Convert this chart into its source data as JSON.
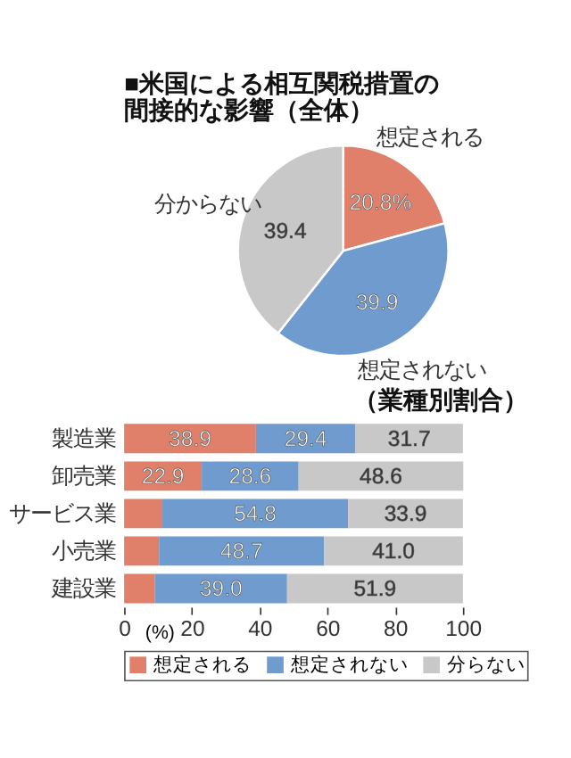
{
  "chart_data": [
    {
      "type": "pie",
      "title": "■米国による相互関税措置の",
      "subtitle": "間接的な影響（全体）",
      "categories": [
        "想定される",
        "想定されない",
        "分からない"
      ],
      "values": [
        20.8,
        39.9,
        39.4
      ],
      "colors": [
        "#e0806a",
        "#6f9bcf",
        "#c8c8c8"
      ],
      "value_labels": [
        "20.8%",
        "39.9",
        "39.4"
      ],
      "legend": false
    },
    {
      "type": "bar",
      "orientation": "horizontal",
      "stacked": true,
      "title": "（業種別割合）",
      "categories": [
        "製造業",
        "卸売業",
        "サービス業",
        "小売業",
        "建設業"
      ],
      "xlabel": "(%)",
      "xlim": [
        0,
        100
      ],
      "xticks": [
        0,
        20,
        40,
        60,
        80,
        100
      ],
      "grid": false,
      "legend": "bottom",
      "series": [
        {
          "name": "想定される",
          "color": "#e0806a",
          "values": [
            38.9,
            22.9,
            11.3,
            10.3,
            9.1
          ],
          "value_labels": [
            "38.9",
            "22.9",
            null,
            null,
            null
          ]
        },
        {
          "name": "想定されない",
          "color": "#6f9bcf",
          "values": [
            29.4,
            28.6,
            54.8,
            48.7,
            39.0
          ],
          "value_labels": [
            "29.4",
            "28.6",
            "54.8",
            "48.7",
            "39.0"
          ]
        },
        {
          "name": "分らない",
          "color": "#c8c8c8",
          "values": [
            31.7,
            48.6,
            33.9,
            41.0,
            51.9
          ],
          "value_labels": [
            "31.7",
            "48.6",
            "33.9",
            "41.0",
            "51.9"
          ]
        }
      ]
    }
  ]
}
